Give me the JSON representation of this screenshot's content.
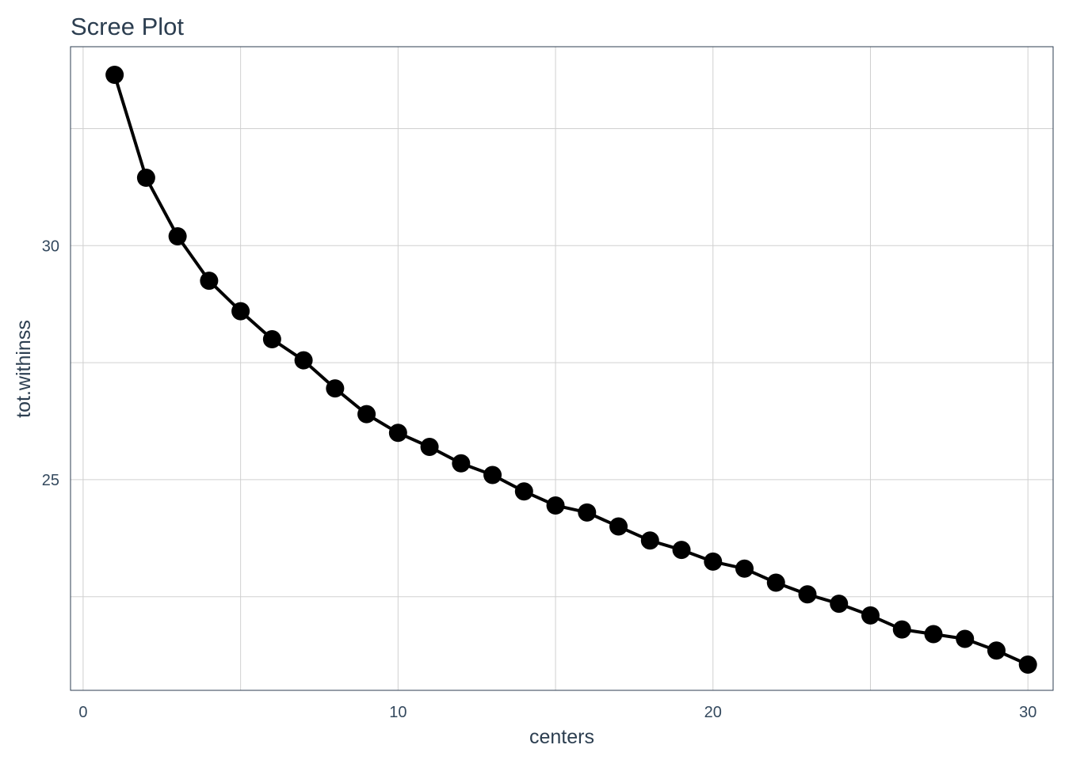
{
  "chart_data": {
    "type": "line",
    "title": "Scree Plot",
    "xlabel": "centers",
    "ylabel": "tot.withinss",
    "xlim": [
      -0.4,
      30.8
    ],
    "ylim": [
      20.5,
      34.25
    ],
    "x_ticks": [
      0,
      10,
      20,
      30
    ],
    "x_tick_labels": [
      "0",
      "10",
      "20",
      "30"
    ],
    "y_ticks": [
      25,
      30
    ],
    "y_tick_labels": [
      "25",
      "30"
    ],
    "x_minor_gridlines": [
      5,
      15,
      25
    ],
    "y_minor_gridlines": [
      22.5,
      27.5,
      32.5
    ],
    "grid": true,
    "legend": "none",
    "line_color": "#000000",
    "point_color": "#000000",
    "series": [
      {
        "x": [
          1,
          2,
          3,
          4,
          5,
          6,
          7,
          8,
          9,
          10,
          11,
          12,
          13,
          14,
          15,
          16,
          17,
          18,
          19,
          20,
          21,
          22,
          23,
          24,
          25,
          26,
          27,
          28,
          29,
          30
        ],
        "values": [
          33.65,
          31.45,
          30.2,
          29.25,
          28.6,
          28.0,
          27.55,
          26.95,
          26.4,
          26.0,
          25.7,
          25.35,
          25.1,
          24.75,
          24.45,
          24.3,
          24.0,
          23.7,
          23.5,
          23.25,
          23.1,
          22.8,
          22.55,
          22.35,
          22.1,
          21.8,
          21.7,
          21.6,
          21.35,
          21.05
        ]
      }
    ]
  }
}
